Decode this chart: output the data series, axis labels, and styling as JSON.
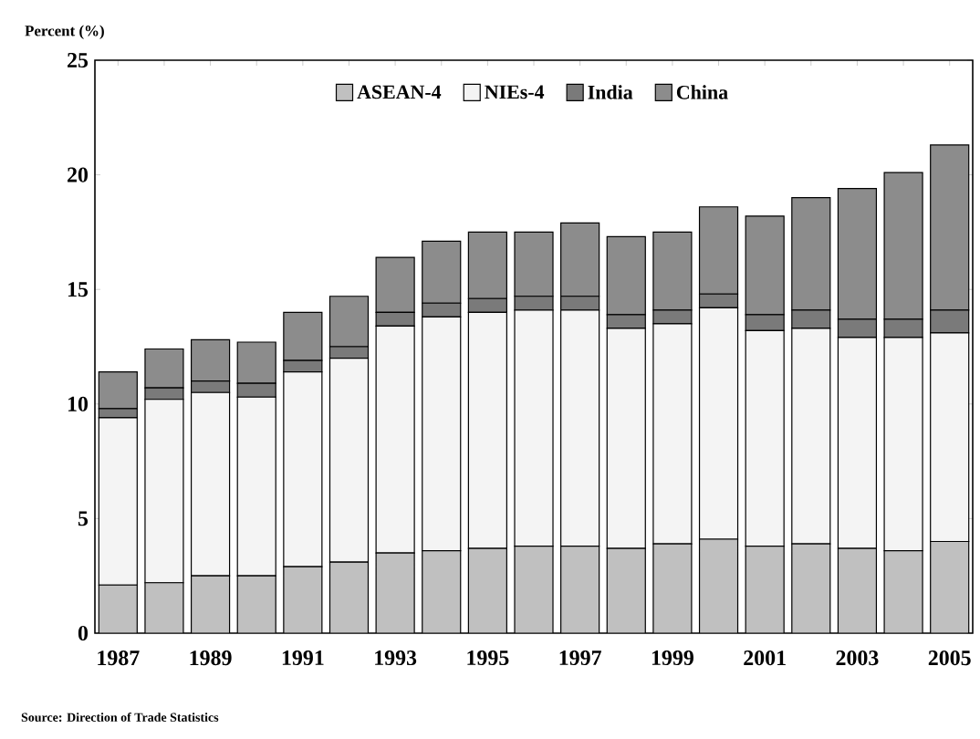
{
  "chart_data": {
    "type": "bar",
    "stacked": true,
    "ylabel": "Percent (%)",
    "categories": [
      "1987",
      null,
      "1989",
      null,
      "1991",
      null,
      "1993",
      null,
      "1995",
      null,
      "1997",
      null,
      "1999",
      null,
      "2001",
      null,
      "2003",
      null,
      "2005"
    ],
    "series": [
      {
        "name": "ASEAN-4",
        "color": "#c0c0c0",
        "values": [
          2.1,
          2.2,
          2.5,
          2.5,
          2.9,
          3.1,
          3.5,
          3.6,
          3.7,
          3.8,
          3.8,
          3.7,
          3.9,
          4.1,
          3.8,
          3.9,
          3.7,
          3.6,
          4.0
        ]
      },
      {
        "name": "NIEs-4",
        "color": "#f4f4f4",
        "values": [
          7.3,
          8.0,
          8.0,
          7.8,
          8.5,
          8.9,
          9.9,
          10.2,
          10.3,
          10.3,
          10.3,
          9.6,
          9.6,
          10.1,
          9.4,
          9.4,
          9.2,
          9.3,
          9.1
        ]
      },
      {
        "name": "India",
        "color": "#7a7a7a",
        "values": [
          0.4,
          0.5,
          0.5,
          0.6,
          0.5,
          0.5,
          0.6,
          0.6,
          0.6,
          0.6,
          0.6,
          0.6,
          0.6,
          0.6,
          0.7,
          0.8,
          0.8,
          0.8,
          1.0
        ]
      },
      {
        "name": "China",
        "color": "#8c8c8c",
        "values": [
          1.6,
          1.7,
          1.8,
          1.8,
          2.1,
          2.2,
          2.4,
          2.7,
          2.9,
          2.8,
          3.2,
          3.4,
          3.4,
          3.8,
          4.3,
          4.9,
          5.7,
          6.4,
          7.2
        ]
      }
    ],
    "ylim": [
      0,
      25
    ],
    "yticks": [
      0,
      5,
      10,
      15,
      20,
      25
    ],
    "legend": "top",
    "annotations": [
      "Source: Direction of Trade Statistics"
    ]
  }
}
